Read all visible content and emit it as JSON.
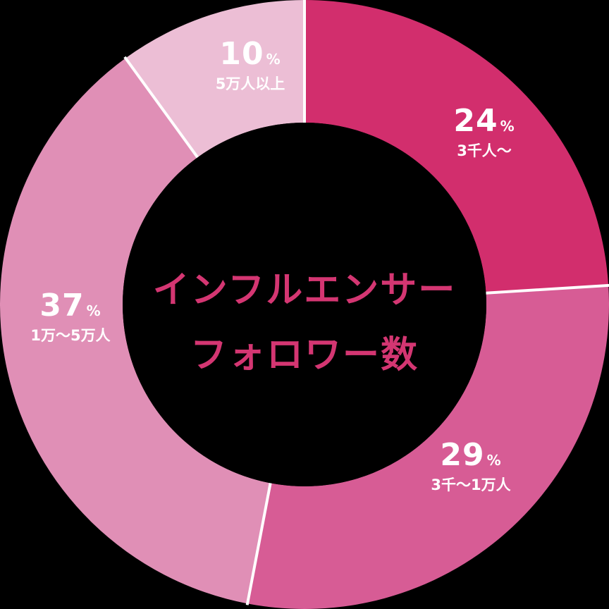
{
  "chart_data": {
    "type": "pie",
    "subtype": "donut",
    "title": "インフルエンサーフォロワー数",
    "title_lines": [
      "インフルエンサー",
      "フォロワー数"
    ],
    "categories": [
      "3千人〜",
      "3千〜1万人",
      "1万〜5万人",
      "5万人以上"
    ],
    "values": [
      24,
      29,
      37,
      10
    ],
    "unit": "%",
    "colors": [
      "#d22e6d",
      "#d75c95",
      "#e08fb6",
      "#ecbed5"
    ],
    "start_angle": "12 o'clock, clockwise",
    "legend": "none (inline labels)"
  },
  "labels": [
    {
      "pct": "24",
      "unit": "%",
      "cat": "3千人〜"
    },
    {
      "pct": "29",
      "unit": "%",
      "cat": "3千〜1万人"
    },
    {
      "pct": "37",
      "unit": "%",
      "cat": "1万〜5万人"
    },
    {
      "pct": "10",
      "unit": "%",
      "cat": "5万人以上"
    }
  ],
  "style": {
    "title_color": "#d43672",
    "background": "#000000",
    "separator": "#ffffff"
  }
}
